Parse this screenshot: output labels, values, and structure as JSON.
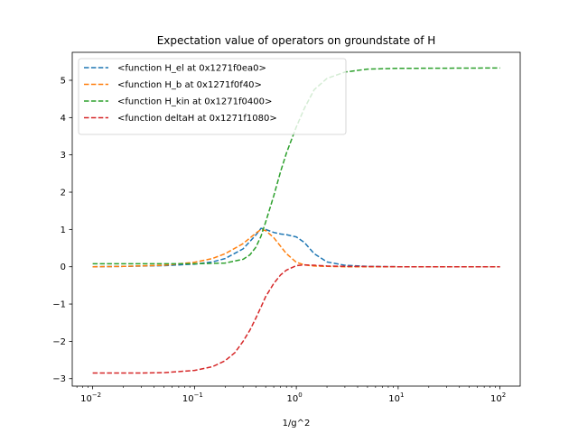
{
  "chart_data": {
    "type": "line",
    "title": "Expectation value of operators on groundstate of H",
    "xlabel": "1/g^2",
    "ylabel": "",
    "xscale": "log",
    "xlim": [
      0.0063,
      158
    ],
    "ylim": [
      -3.2,
      5.75
    ],
    "xticks": [
      0.01,
      0.1,
      1,
      10,
      100
    ],
    "xtick_labels": [
      [
        "10",
        "−2"
      ],
      [
        "10",
        "−1"
      ],
      [
        "10",
        "0"
      ],
      [
        "10",
        "1"
      ],
      [
        "10",
        "2"
      ]
    ],
    "yticks": [
      -3,
      -2,
      -1,
      0,
      1,
      2,
      3,
      4,
      5
    ],
    "ytick_labels": [
      "−3",
      "−2",
      "−1",
      "0",
      "1",
      "2",
      "3",
      "4",
      "5"
    ],
    "grid": false,
    "legend_position": "upper-left",
    "series": [
      {
        "name": "<function H_el at 0x1271f0ea0>",
        "color": "#1f77b4",
        "x": [
          0.01,
          0.02,
          0.05,
          0.1,
          0.15,
          0.2,
          0.3,
          0.4,
          0.45,
          0.5,
          0.6,
          0.7,
          0.8,
          1.0,
          1.2,
          1.5,
          2.0,
          3.0,
          5.0,
          10,
          100
        ],
        "y": [
          0.0,
          0.01,
          0.03,
          0.07,
          0.13,
          0.22,
          0.48,
          0.85,
          1.03,
          1.0,
          0.92,
          0.88,
          0.86,
          0.8,
          0.65,
          0.35,
          0.13,
          0.04,
          0.01,
          0.0,
          0.0
        ]
      },
      {
        "name": "<function H_b at 0x1271f0f40>",
        "color": "#ff7f0e",
        "x": [
          0.01,
          0.02,
          0.05,
          0.1,
          0.15,
          0.2,
          0.3,
          0.4,
          0.45,
          0.5,
          0.6,
          0.7,
          0.8,
          1.0,
          1.2,
          1.5,
          2.0,
          3.0,
          10,
          100
        ],
        "y": [
          0.0,
          0.01,
          0.04,
          0.12,
          0.22,
          0.35,
          0.62,
          0.9,
          1.0,
          0.97,
          0.78,
          0.55,
          0.35,
          0.12,
          0.05,
          0.02,
          0.01,
          0.0,
          0.0,
          0.0
        ]
      },
      {
        "name": "<function H_kin at 0x1271f0400>",
        "color": "#2ca02c",
        "x": [
          0.01,
          0.03,
          0.1,
          0.2,
          0.3,
          0.35,
          0.4,
          0.45,
          0.5,
          0.6,
          0.7,
          0.8,
          1.0,
          1.2,
          1.5,
          2.0,
          3.0,
          5.0,
          10,
          100
        ],
        "y": [
          0.08,
          0.08,
          0.08,
          0.1,
          0.2,
          0.32,
          0.52,
          0.82,
          1.2,
          1.9,
          2.55,
          3.05,
          3.75,
          4.25,
          4.75,
          5.05,
          5.22,
          5.3,
          5.32,
          5.33
        ]
      },
      {
        "name": "<function deltaH at 0x1271f1080>",
        "color": "#d62728",
        "x": [
          0.01,
          0.03,
          0.05,
          0.1,
          0.15,
          0.2,
          0.25,
          0.3,
          0.35,
          0.4,
          0.45,
          0.5,
          0.6,
          0.7,
          0.8,
          1.0,
          1.2,
          1.5,
          2.0,
          3.0,
          10,
          100
        ],
        "y": [
          -2.85,
          -2.85,
          -2.84,
          -2.78,
          -2.68,
          -2.52,
          -2.3,
          -2.0,
          -1.7,
          -1.38,
          -1.08,
          -0.8,
          -0.45,
          -0.22,
          -0.09,
          0.03,
          0.05,
          0.04,
          0.02,
          0.01,
          0.0,
          0.0
        ]
      }
    ]
  }
}
